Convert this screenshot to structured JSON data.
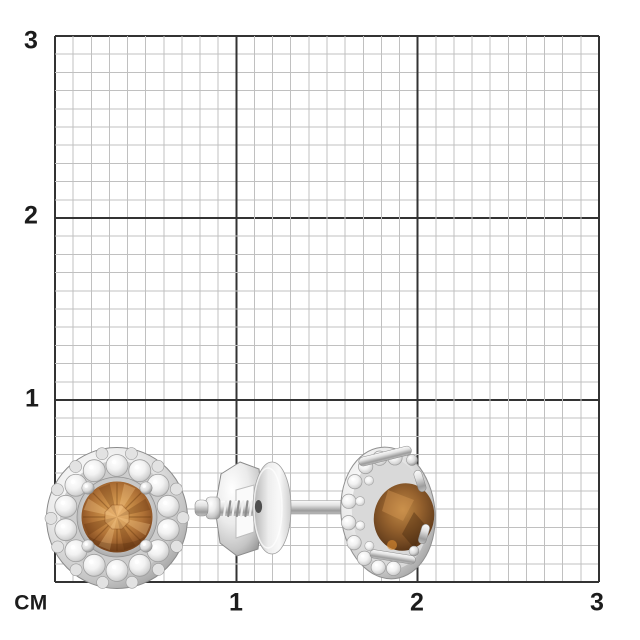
{
  "ruler": {
    "unit": "СМ",
    "x_ticks": [
      "1",
      "2",
      "3"
    ],
    "y_ticks_top_to_bottom": [
      "3",
      "2",
      "1"
    ],
    "cm_range_x": [
      0,
      3
    ],
    "cm_range_y": [
      0,
      3
    ]
  },
  "grid": {
    "background": "#ffffff",
    "minor_line_color": "#c0c0c0",
    "major_line_color": "#333333",
    "minor_divisions_per_cm": 10
  },
  "product": {
    "items": [
      {
        "name": "halo-stud-earring-front-view",
        "center_stone_color": "#b5743a",
        "halo_stone_color": "#f4f4f4",
        "metal_color": "#d6d6d6"
      },
      {
        "name": "screw-back-fastener",
        "metal_color": "#d6d6d6"
      },
      {
        "name": "halo-stud-earring-side-view",
        "center_stone_color": "#7a4b24",
        "halo_stone_color": "#f4f4f4",
        "metal_color": "#d6d6d6"
      }
    ]
  }
}
